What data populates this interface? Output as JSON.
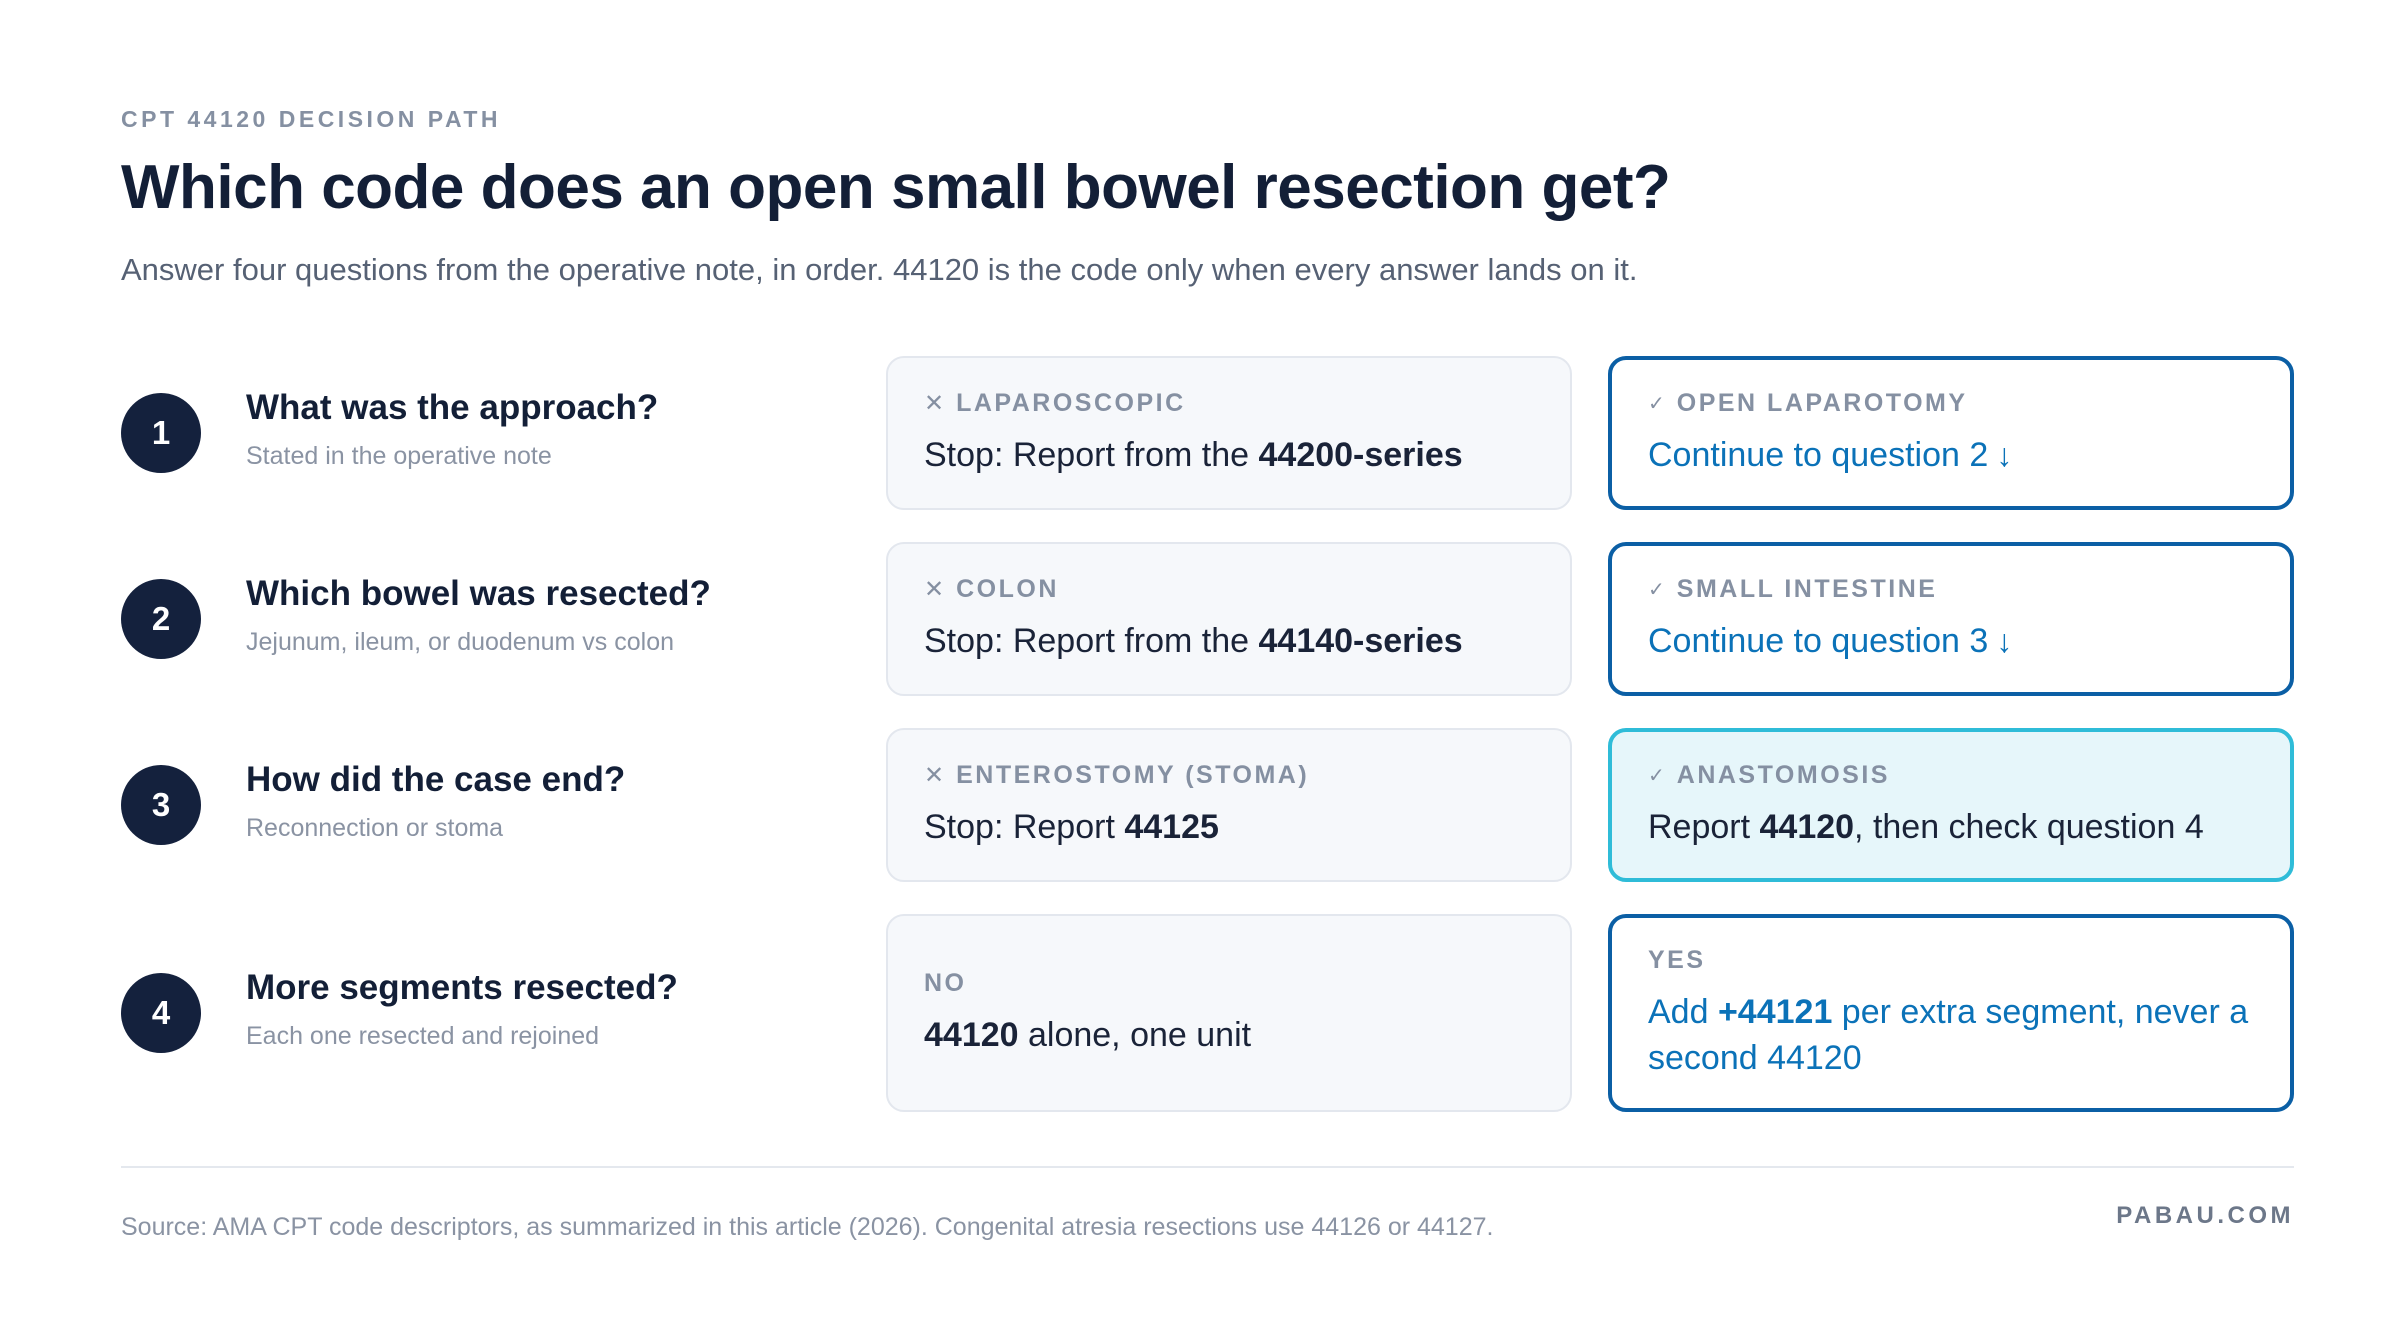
{
  "header": {
    "eyebrow": "CPT 44120 DECISION PATH",
    "title": "Which code does an open small bowel resection get?",
    "subtitle": "Answer four questions from the operative note, in order. 44120 is the code only when every answer lands on it."
  },
  "questions": [
    {
      "number": "1",
      "title": "What was the approach?",
      "sub": "Stated in the operative note",
      "stop": {
        "mark": "✕",
        "label": "LAPAROSCOPIC",
        "pre": "Stop: Report from the ",
        "bold": "44200-series",
        "post": ""
      },
      "go": {
        "mark": "✓",
        "label": "OPEN LAPAROTOMY",
        "text": "Continue to question 2",
        "arrow": "↓"
      }
    },
    {
      "number": "2",
      "title": "Which bowel was resected?",
      "sub": "Jejunum, ileum, or duodenum vs colon",
      "stop": {
        "mark": "✕",
        "label": "COLON",
        "pre": "Stop: Report from the ",
        "bold": "44140-series",
        "post": ""
      },
      "go": {
        "mark": "✓",
        "label": "SMALL INTESTINE",
        "text": "Continue to question 3",
        "arrow": "↓"
      }
    },
    {
      "number": "3",
      "title": "How did the case end?",
      "sub": "Reconnection or stoma",
      "stop": {
        "mark": "✕",
        "label": "ENTEROSTOMY (STOMA)",
        "pre": "Stop: Report ",
        "bold": "44125",
        "post": ""
      },
      "go": {
        "mark": "✓",
        "label": "ANASTOMOSIS",
        "pre": "Report ",
        "bold": "44120",
        "post": ", then check question 4"
      }
    },
    {
      "number": "4",
      "title": "More segments resected?",
      "sub": "Each one resected and rejoined",
      "stop": {
        "label": "NO",
        "pre": "",
        "bold": "44120",
        "post": " alone, one unit"
      },
      "go": {
        "label": "YES",
        "pre": "Add ",
        "bold": "+44121",
        "post": " per extra segment, never a second 44120"
      }
    }
  ],
  "footer": {
    "source": "Source: AMA CPT code descriptors, as summarized in this article (2026). Congenital atresia resections use 44126 or 44127.",
    "brand": "PABAU.COM"
  },
  "colors": {
    "navy": "#14213d",
    "accent_blue": "#0b5fa5",
    "link_blue": "#0b72b8",
    "highlight_border": "#2fbcd8",
    "highlight_fill": "#e6f6fa"
  }
}
